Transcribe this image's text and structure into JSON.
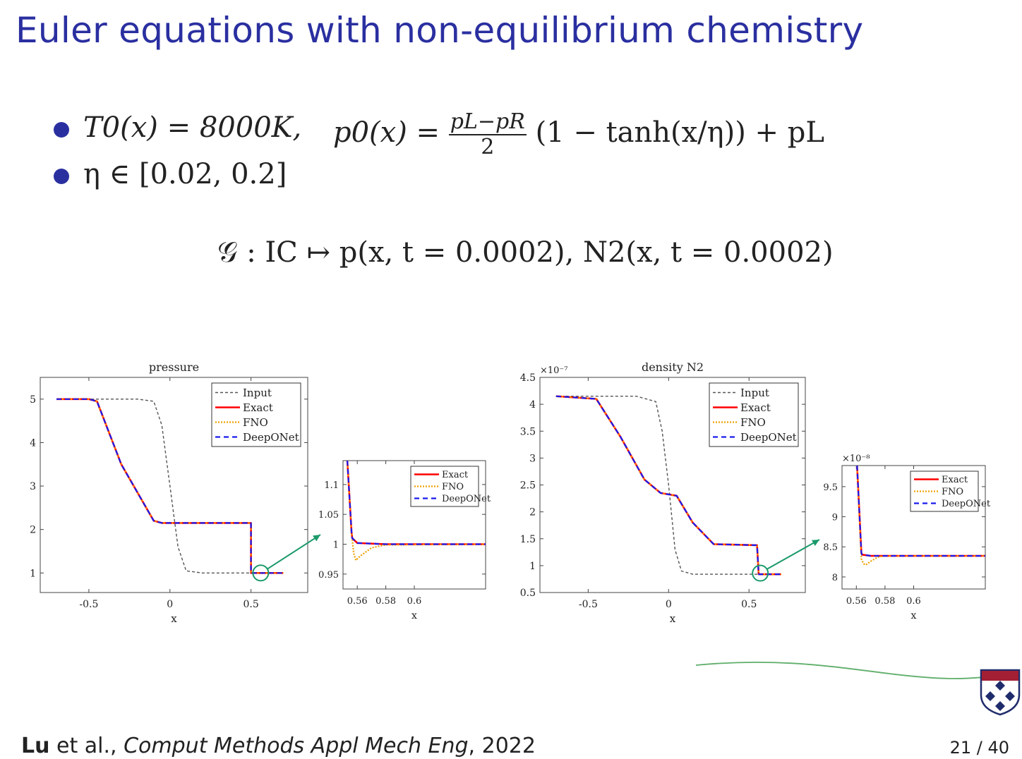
{
  "slide": {
    "title": "Euler equations with non-equilibrium chemistry",
    "bullet1_left": "T0(x) = 8000K,",
    "bullet1_right_prefix": "p0(x) =",
    "bullet1_frac_num": "pL−pR",
    "bullet1_frac_den": "2",
    "bullet1_right_suffix": "(1 − tanh(x/η)) + pL",
    "bullet2": "η ∈ [0.02, 0.2]",
    "operator": "𝒢 : IC ↦ p(x, t = 0.0002), N2(x, t = 0.0002)",
    "citation_author": "Lu",
    "citation_rest": " et al., ",
    "citation_journal": "Comput Methods Appl Mech Eng",
    "citation_year": ", 2022",
    "page": "21 / 40",
    "colors": {
      "title": "#2a2fa0",
      "exact": "#ff0000",
      "fno": "#f0a000",
      "deeponet": "#1a1aee",
      "input": "#555555",
      "arrow": "#1b9a6a"
    }
  },
  "chart_data": [
    {
      "type": "line",
      "title": "pressure",
      "xlabel": "x",
      "ylabel": "",
      "xlim": [
        -0.8,
        0.85
      ],
      "ylim": [
        0.55,
        5.5
      ],
      "xticks": [
        -0.5,
        0,
        0.5
      ],
      "xtick_labels": [
        "-0.5",
        "0",
        "0.5"
      ],
      "yticks": [
        1,
        2,
        3,
        4,
        5
      ],
      "ytick_labels": [
        "1",
        "2",
        "3",
        "4",
        "5"
      ],
      "legend": [
        "Input",
        "Exact",
        "FNO",
        "DeepONet"
      ],
      "legend_position": "top-right",
      "series": [
        {
          "name": "Input",
          "x": [
            -0.7,
            -0.4,
            -0.2,
            -0.1,
            -0.05,
            0,
            0.05,
            0.1,
            0.2,
            0.4,
            0.7
          ],
          "y": [
            5,
            5,
            5,
            4.95,
            4.4,
            3,
            1.6,
            1.05,
            1,
            1,
            1
          ]
        },
        {
          "name": "Exact",
          "x": [
            -0.7,
            -0.5,
            -0.45,
            -0.3,
            -0.1,
            -0.05,
            0.5,
            0.5,
            0.7
          ],
          "y": [
            5,
            5,
            4.95,
            3.5,
            2.2,
            2.15,
            2.15,
            1,
            1
          ]
        },
        {
          "name": "FNO",
          "x": [
            -0.7,
            -0.5,
            -0.45,
            -0.3,
            -0.1,
            -0.05,
            0.5,
            0.5,
            0.7
          ],
          "y": [
            5,
            5,
            4.95,
            3.5,
            2.2,
            2.15,
            2.15,
            1,
            1
          ]
        },
        {
          "name": "DeepONet",
          "x": [
            -0.7,
            -0.5,
            -0.45,
            -0.3,
            -0.1,
            -0.05,
            0.5,
            0.5,
            0.7
          ],
          "y": [
            5,
            5,
            4.95,
            3.5,
            2.2,
            2.15,
            2.15,
            1,
            1
          ]
        }
      ],
      "zoom_center": [
        0.56,
        1.0
      ]
    },
    {
      "type": "line",
      "title": "",
      "xlabel": "x",
      "ylabel": "",
      "xlim": [
        0.55,
        0.65
      ],
      "ylim": [
        0.925,
        1.14
      ],
      "xticks": [
        0.56,
        0.58,
        0.6
      ],
      "xtick_labels": [
        "0.56",
        "0.58",
        "0.6"
      ],
      "yticks": [
        0.95,
        1,
        1.05,
        1.1
      ],
      "ytick_labels": [
        "0.95",
        "1",
        "1.05",
        "1.1"
      ],
      "legend": [
        "Exact",
        "FNO",
        "DeepONet"
      ],
      "legend_position": "top-right",
      "series": [
        {
          "name": "Exact",
          "x": [
            0.553,
            0.556,
            0.5565,
            0.56,
            0.58,
            0.65
          ],
          "y": [
            1.14,
            1.02,
            1.01,
            1.002,
            1.0,
            1.0
          ]
        },
        {
          "name": "FNO",
          "x": [
            0.553,
            0.556,
            0.5575,
            0.559,
            0.562,
            0.57,
            0.58,
            0.65
          ],
          "y": [
            1.14,
            1.02,
            0.985,
            0.973,
            0.98,
            0.994,
            0.999,
            1.0
          ]
        },
        {
          "name": "DeepONet",
          "x": [
            0.553,
            0.556,
            0.5565,
            0.56,
            0.58,
            0.65
          ],
          "y": [
            1.14,
            1.02,
            1.01,
            1.002,
            1.0,
            1.0
          ]
        }
      ]
    },
    {
      "type": "line",
      "title": "density N2",
      "xlabel": "x",
      "ylabel": "",
      "y_multiplier": "×10⁻⁷",
      "xlim": [
        -0.8,
        0.85
      ],
      "ylim": [
        0.5,
        4.5
      ],
      "xticks": [
        -0.5,
        0,
        0.5
      ],
      "xtick_labels": [
        "-0.5",
        "0",
        "0.5"
      ],
      "yticks": [
        0.5,
        1,
        1.5,
        2,
        2.5,
        3,
        3.5,
        4,
        4.5
      ],
      "ytick_labels": [
        "0.5",
        "1",
        "1.5",
        "2",
        "2.5",
        "3",
        "3.5",
        "4",
        "4.5"
      ],
      "legend": [
        "Input",
        "Exact",
        "FNO",
        "DeepONet"
      ],
      "legend_position": "top-right",
      "series": [
        {
          "name": "Input",
          "x": [
            -0.7,
            -0.2,
            -0.08,
            -0.04,
            0,
            0.04,
            0.08,
            0.15,
            0.7
          ],
          "y": [
            4.15,
            4.15,
            4.05,
            3.5,
            2.5,
            1.3,
            0.9,
            0.84,
            0.84
          ]
        },
        {
          "name": "Exact",
          "x": [
            -0.7,
            -0.45,
            -0.3,
            -0.15,
            -0.05,
            0.05,
            0.15,
            0.28,
            0.55,
            0.56,
            0.7
          ],
          "y": [
            4.15,
            4.1,
            3.4,
            2.6,
            2.35,
            2.3,
            1.8,
            1.4,
            1.38,
            0.84,
            0.84
          ]
        },
        {
          "name": "FNO",
          "x": [
            -0.7,
            -0.45,
            -0.3,
            -0.15,
            -0.05,
            0.05,
            0.15,
            0.28,
            0.55,
            0.56,
            0.7
          ],
          "y": [
            4.15,
            4.1,
            3.4,
            2.6,
            2.35,
            2.3,
            1.8,
            1.4,
            1.38,
            0.84,
            0.84
          ]
        },
        {
          "name": "DeepONet",
          "x": [
            -0.7,
            -0.45,
            -0.3,
            -0.15,
            -0.05,
            0.05,
            0.15,
            0.28,
            0.55,
            0.56,
            0.7
          ],
          "y": [
            4.15,
            4.1,
            3.4,
            2.6,
            2.35,
            2.3,
            1.8,
            1.4,
            1.38,
            0.84,
            0.84
          ]
        }
      ],
      "zoom_center": [
        0.57,
        0.86
      ]
    },
    {
      "type": "line",
      "title": "",
      "xlabel": "x",
      "ylabel": "",
      "y_multiplier": "×10⁻⁸",
      "xlim": [
        0.55,
        0.65
      ],
      "ylim": [
        7.8,
        9.85
      ],
      "xticks": [
        0.56,
        0.58,
        0.6
      ],
      "xtick_labels": [
        "0.56",
        "0.58",
        "0.6"
      ],
      "yticks": [
        8,
        8.5,
        9,
        9.5
      ],
      "ytick_labels": [
        "8",
        "8.5",
        "9",
        "9.5"
      ],
      "legend": [
        "Exact",
        "FNO",
        "DeepONet"
      ],
      "legend_position": "top-right",
      "series": [
        {
          "name": "Exact",
          "x": [
            0.5605,
            0.5635,
            0.564,
            0.57,
            0.58,
            0.65
          ],
          "y": [
            9.85,
            8.4,
            8.37,
            8.35,
            8.35,
            8.35
          ]
        },
        {
          "name": "FNO",
          "x": [
            0.5605,
            0.5635,
            0.565,
            0.5665,
            0.57,
            0.575,
            0.58,
            0.65
          ],
          "y": [
            9.85,
            8.3,
            8.22,
            8.2,
            8.26,
            8.33,
            8.35,
            8.35
          ]
        },
        {
          "name": "DeepONet",
          "x": [
            0.5605,
            0.5635,
            0.564,
            0.57,
            0.58,
            0.65
          ],
          "y": [
            9.85,
            8.4,
            8.37,
            8.35,
            8.35,
            8.35
          ]
        }
      ]
    }
  ]
}
